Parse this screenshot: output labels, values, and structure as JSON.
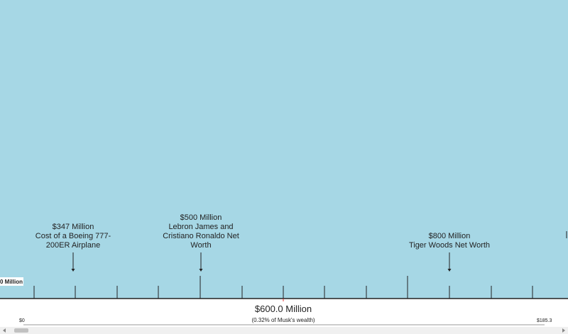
{
  "annotations": [
    {
      "lines": [
        "$347 Million",
        "Cost of a Boeing 777-",
        "200ER Airplane"
      ]
    },
    {
      "lines": [
        "$500 Million",
        "Lebron James and",
        "Cristiano Ronaldo Net",
        "Worth"
      ]
    },
    {
      "lines": [
        "$800 Million",
        "Tiger Woods Net Worth"
      ]
    }
  ],
  "edge_label": "0 Million",
  "footer": {
    "amount": "$600.0 Million",
    "share": "(0.32% of Musk's wealth)",
    "start": "$0",
    "end": "$185.3"
  }
}
